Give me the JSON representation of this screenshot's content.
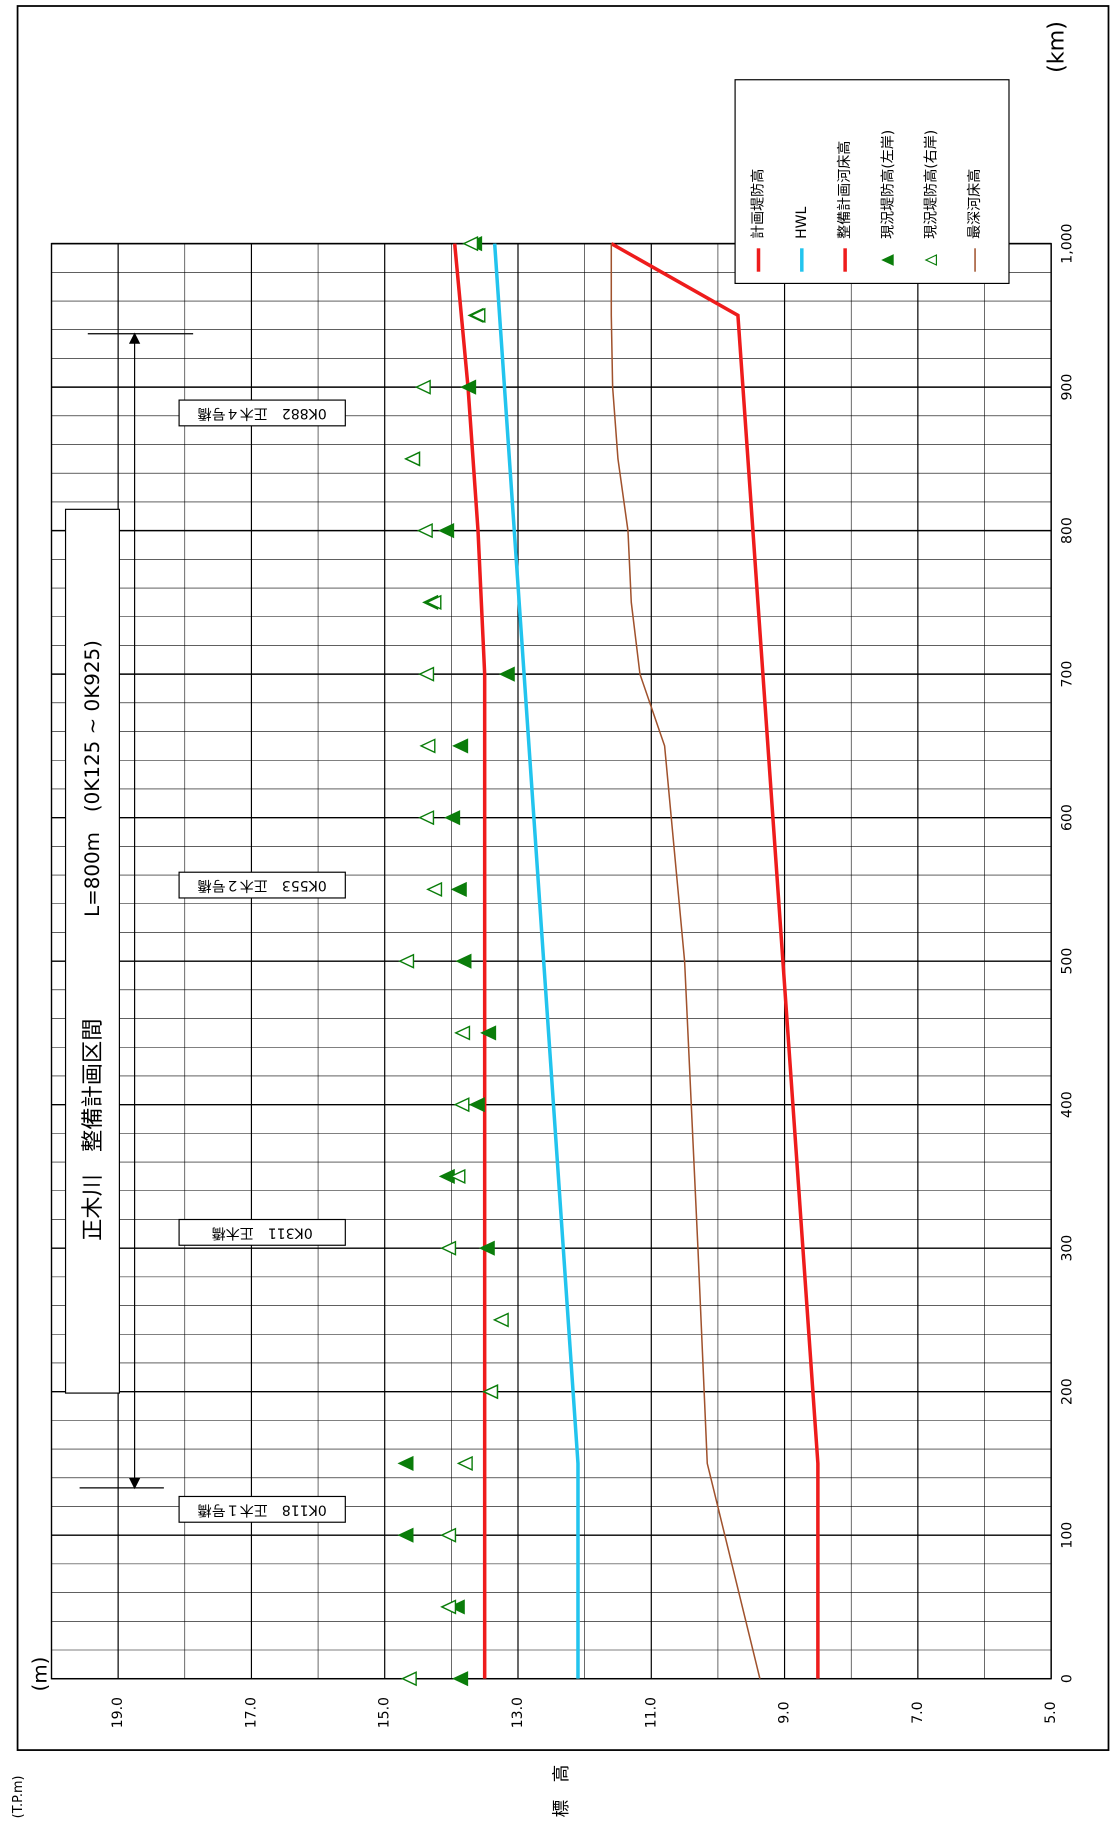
{
  "chart_data": {
    "type": "line",
    "title": "正木川　整備計画区間",
    "subtitle": "L=800m　(0K125 ~ 0K925)",
    "x_label": "(km)",
    "y_label": "標　高",
    "y_unit_top": "(m)",
    "y_unit_bottom": "(T.P.m)",
    "xlim": [
      0,
      1000
    ],
    "xticks": [
      0,
      100,
      200,
      300,
      400,
      500,
      600,
      700,
      800,
      900,
      {
        "value": 1000,
        "label": "1,000"
      }
    ],
    "x_minor_tick_step": 20,
    "ylim": [
      5,
      20
    ],
    "yticks": [
      {
        "value": 5,
        "label": "5.0"
      },
      {
        "value": 7,
        "label": "7.0"
      },
      {
        "value": 9,
        "label": "9.0"
      },
      {
        "value": 11,
        "label": "11.0"
      },
      {
        "value": 13,
        "label": "13.0"
      },
      {
        "value": 15,
        "label": "15.0"
      },
      {
        "value": 17,
        "label": "17.0"
      },
      {
        "value": 19,
        "label": "19.0"
      }
    ],
    "y_minor_tick_step": 1,
    "grid": true,
    "legend": "top-right",
    "series": [
      {
        "name": "計画堤防高",
        "color": "#ee1c1c",
        "style": "thick-line",
        "x": [
          0,
          700,
          800,
          900,
          1000
        ],
        "values": [
          13.5,
          13.5,
          13.6,
          13.75,
          13.95
        ]
      },
      {
        "name": "HWL",
        "color": "#22c4ee",
        "style": "thick-line",
        "x": [
          0,
          150,
          1000
        ],
        "values": [
          12.1,
          12.1,
          13.35
        ]
      },
      {
        "name": "整備計画河床高",
        "color": "#ee1c1c",
        "style": "thick-line",
        "x": [
          0,
          150,
          950,
          1000
        ],
        "values": [
          8.5,
          8.5,
          9.7,
          11.6
        ]
      },
      {
        "name": "現況堤防高(左岸)",
        "color": "#0a7d0a",
        "style": "filled-triangle",
        "x": [
          0,
          50,
          100,
          150,
          200,
          300,
          350,
          400,
          450,
          500,
          550,
          600,
          650,
          700,
          750,
          800,
          850,
          900,
          950,
          1000
        ],
        "values": [
          13.85,
          13.9,
          14.67,
          14.67,
          13.4,
          13.45,
          14.05,
          13.6,
          13.43,
          13.8,
          13.87,
          13.97,
          13.85,
          13.15,
          14.3,
          14.06,
          14.57,
          13.73,
          13.62,
          13.64
        ]
      },
      {
        "name": "現況堤防高(右岸)",
        "color": "#0a7d0a",
        "style": "open-triangle",
        "x": [
          0,
          50,
          100,
          150,
          200,
          250,
          300,
          350,
          400,
          450,
          500,
          550,
          600,
          650,
          700,
          750,
          800,
          850,
          900,
          950,
          1000
        ],
        "values": [
          14.62,
          14.03,
          14.03,
          13.78,
          13.4,
          13.24,
          14.03,
          13.89,
          13.83,
          13.82,
          14.66,
          14.24,
          14.36,
          14.34,
          14.36,
          14.25,
          14.38,
          14.57,
          14.41,
          13.59,
          13.7
        ]
      },
      {
        "name": "最深河床高",
        "color": "#a0522d",
        "style": "thin-line",
        "x": [
          0,
          150,
          300,
          400,
          500,
          600,
          650,
          700,
          750,
          800,
          850,
          900,
          950,
          1000
        ],
        "values": [
          9.37,
          10.16,
          10.3,
          10.4,
          10.5,
          10.7,
          10.8,
          11.17,
          11.3,
          11.35,
          11.5,
          11.58,
          11.6,
          11.6
        ]
      }
    ],
    "annotations": [
      {
        "label": "0K118　正木１号橋",
        "x": 118
      },
      {
        "label": "0K311　正木橋",
        "x": 311
      },
      {
        "label": "0K553　正木２号橋",
        "x": 553
      },
      {
        "label": "0K882　正木４号橋",
        "x": 882
      }
    ]
  }
}
